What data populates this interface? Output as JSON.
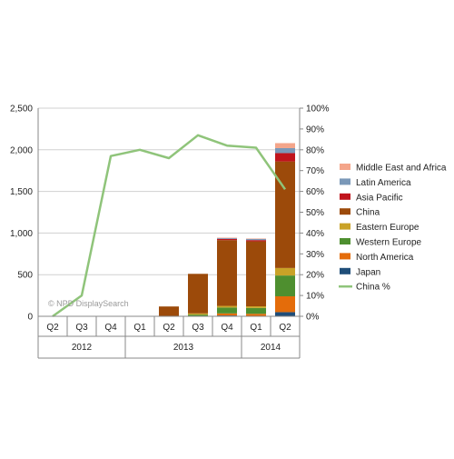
{
  "chart_data": {
    "type": "bar",
    "stacked": true,
    "watermark": "© NPD DisplaySearch",
    "categories": [
      "Q2",
      "Q3",
      "Q4",
      "Q1",
      "Q2",
      "Q3",
      "Q4",
      "Q1",
      "Q2"
    ],
    "year_groups": [
      {
        "label": "2012",
        "span": [
          0,
          2
        ]
      },
      {
        "label": "2013",
        "span": [
          3,
          6
        ]
      },
      {
        "label": "2014",
        "span": [
          7,
          8
        ]
      }
    ],
    "y_left": {
      "min": 0,
      "max": 2500,
      "ticks": [
        0,
        500,
        1000,
        1500,
        2000,
        2500
      ],
      "tick_labels": [
        "0",
        "500",
        "1,000",
        "1,500",
        "2,000",
        "2,500"
      ]
    },
    "y_right": {
      "min": 0,
      "max": 100,
      "ticks": [
        0,
        10,
        20,
        30,
        40,
        50,
        60,
        70,
        80,
        90,
        100
      ],
      "tick_labels": [
        "0%",
        "10%",
        "20%",
        "30%",
        "40%",
        "50%",
        "60%",
        "70%",
        "80%",
        "90%",
        "100%"
      ]
    },
    "grid": true,
    "legend_position": "right",
    "series": [
      {
        "name": "Japan",
        "color": "#1f4e79",
        "values": [
          0,
          0,
          0,
          0,
          0,
          0,
          10,
          5,
          50
        ]
      },
      {
        "name": "North America",
        "color": "#e46c0a",
        "values": [
          0,
          0,
          0,
          0,
          0,
          0,
          25,
          25,
          190
        ]
      },
      {
        "name": "Western Europe",
        "color": "#4e8f2f",
        "values": [
          0,
          0,
          0,
          0,
          2,
          20,
          70,
          70,
          250
        ]
      },
      {
        "name": "Eastern Europe",
        "color": "#c9a227",
        "values": [
          0,
          0,
          0,
          0,
          1,
          15,
          20,
          20,
          90
        ]
      },
      {
        "name": "China",
        "color": "#9c4a0a",
        "values": [
          0,
          0,
          0,
          5,
          115,
          475,
          790,
          780,
          1280
        ]
      },
      {
        "name": "Asia Pacific",
        "color": "#c0141c",
        "values": [
          0,
          0,
          0,
          0,
          0,
          0,
          15,
          15,
          100
        ]
      },
      {
        "name": "Latin America",
        "color": "#7a98b8",
        "values": [
          0,
          0,
          0,
          0,
          0,
          0,
          10,
          15,
          60
        ]
      },
      {
        "name": "Middle East and Africa",
        "color": "#f4a58a",
        "values": [
          0,
          0,
          0,
          0,
          0,
          0,
          5,
          5,
          60
        ]
      }
    ],
    "line_series": {
      "name": "China %",
      "color": "#8fc47a",
      "axis": "right",
      "values": [
        0,
        10,
        77,
        80,
        76,
        87,
        82,
        81,
        61
      ]
    },
    "legend_order": [
      "Middle East and Africa",
      "Latin America",
      "Asia Pacific",
      "China",
      "Eastern Europe",
      "Western Europe",
      "North America",
      "Japan",
      "China %"
    ]
  }
}
